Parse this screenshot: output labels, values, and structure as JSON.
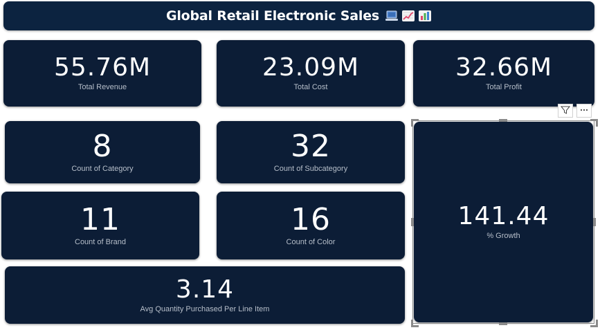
{
  "header": {
    "title": "Global Retail Electronic Sales",
    "icons": [
      "laptop-emoji-icon",
      "chart-increasing-emoji-icon",
      "bar-chart-emoji-icon"
    ]
  },
  "kpis": {
    "total_revenue": {
      "value": "55.76M",
      "label": "Total Revenue"
    },
    "total_cost": {
      "value": "23.09M",
      "label": "Total Cost"
    },
    "total_profit": {
      "value": "32.66M",
      "label": "Total Profit"
    },
    "count_category": {
      "value": "8",
      "label": "Count of Category"
    },
    "count_subcategory": {
      "value": "32",
      "label": "Count of Subcategory"
    },
    "count_brand": {
      "value": "11",
      "label": "Count of Brand"
    },
    "count_color": {
      "value": "16",
      "label": "Count of Color"
    },
    "avg_quantity": {
      "value": "3.14",
      "label": "Avg Quantity Purchased Per Line Item"
    },
    "growth": {
      "value": "141.44",
      "label": "% Growth"
    }
  },
  "visual_toolbar": {
    "filter_icon": "filter-icon",
    "more_icon": "more-options-icon"
  },
  "colors": {
    "card_bg": "#0c1d36",
    "title_bg": "#0c2340",
    "value_text": "#ffffff",
    "label_text": "#b7bfca"
  }
}
